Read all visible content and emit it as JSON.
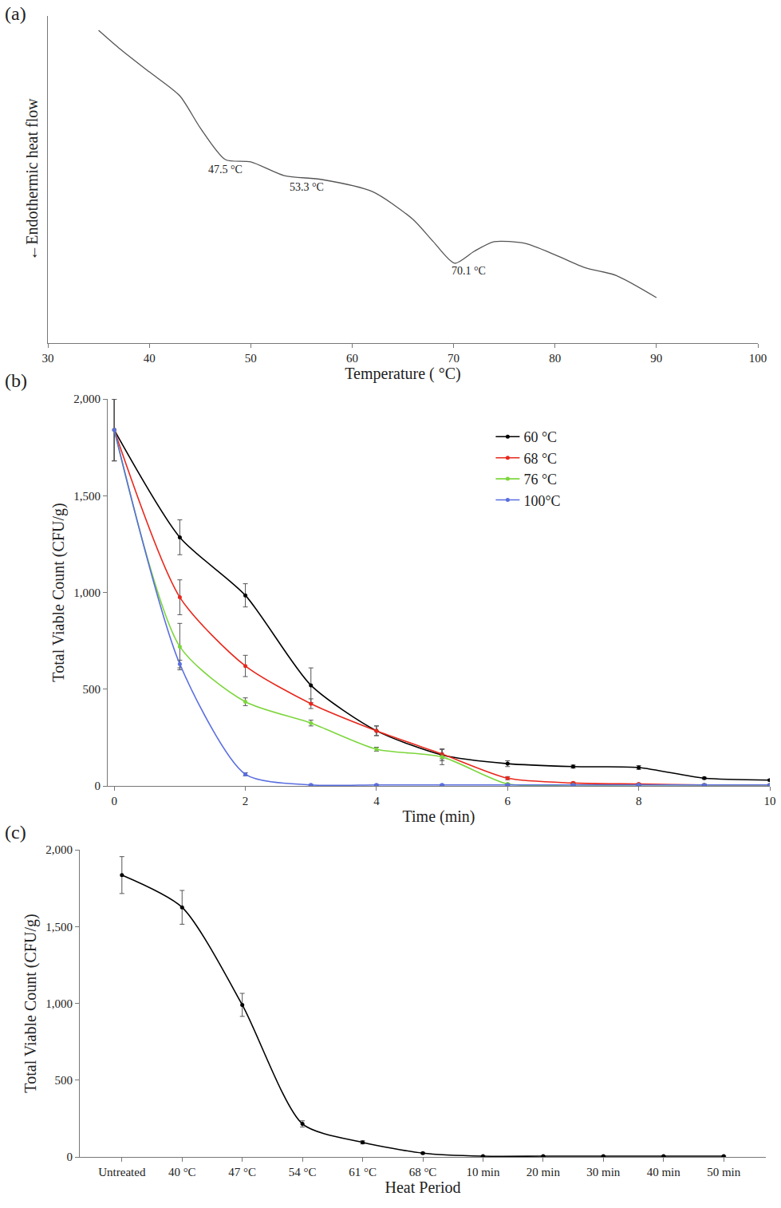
{
  "chart_data": [
    {
      "type": "line",
      "title": "(a)",
      "x_label": "Temperature ( °C)",
      "y_label": "←Endothermic heat flow",
      "x": [
        35,
        37,
        40,
        43,
        45,
        47.5,
        50,
        53.3,
        57,
        62,
        66,
        68,
        70.1,
        72,
        74,
        77,
        80,
        83,
        86,
        90
      ],
      "values": [
        95.6,
        90.2,
        82.9,
        75.6,
        65.9,
        56.1,
        55.4,
        51.2,
        50,
        46.3,
        37.8,
        31,
        24.4,
        28,
        31,
        30.5,
        27,
        23,
        20.7,
        13.9
      ],
      "color": "#555555",
      "xlim": [
        30,
        100
      ],
      "xticks": [
        30,
        40,
        50,
        60,
        70,
        80,
        90,
        100
      ],
      "ylim": [
        0,
        100
      ],
      "yticks": [],
      "tick_labels": "x",
      "grid": false,
      "annotations": [
        {
          "text": "47.5 °C",
          "x": 47.5,
          "y": 53
        },
        {
          "text": "53.3 °C",
          "x": 55.5,
          "y": 47.6
        },
        {
          "text": "70.1 °C",
          "x": 71.5,
          "y": 22
        }
      ]
    },
    {
      "type": "line",
      "title": "(b)",
      "x_label": "Time (min)",
      "y_label": "Total Viable Count (CFU/g)",
      "x": [
        0,
        1,
        2,
        3,
        4,
        5,
        6,
        7,
        8,
        9,
        10
      ],
      "series": [
        {
          "name": "60 °C",
          "color": "#000000",
          "values": [
            1840,
            1285,
            985,
            520,
            285,
            160,
            115,
            100,
            95,
            40,
            30
          ],
          "errors": [
            160,
            90,
            60,
            90,
            25,
            30,
            15,
            8,
            10,
            5,
            5
          ]
        },
        {
          "name": "68 °C",
          "color": "#e8281c",
          "values": [
            1840,
            975,
            620,
            425,
            285,
            165,
            40,
            15,
            10,
            5,
            5
          ],
          "errors": [
            160,
            90,
            55,
            25,
            25,
            25,
            8,
            5,
            3,
            3,
            3
          ]
        },
        {
          "name": "76 °C",
          "color": "#7cd63c",
          "values": [
            1840,
            720,
            435,
            325,
            190,
            150,
            10,
            5,
            5,
            5,
            5
          ],
          "errors": [
            160,
            120,
            20,
            15,
            10,
            40,
            3,
            3,
            3,
            3,
            3
          ]
        },
        {
          "name": "100°C",
          "color": "#5a6ee0",
          "values": [
            1840,
            630,
            60,
            5,
            5,
            5,
            5,
            5,
            5,
            5,
            5
          ],
          "errors": [
            160,
            20,
            8,
            3,
            3,
            3,
            3,
            3,
            3,
            3,
            3
          ]
        }
      ],
      "xlim": [
        -0.1,
        10
      ],
      "xticks": [
        0,
        2,
        4,
        6,
        8,
        10
      ],
      "ylim": [
        0,
        2000
      ],
      "yticks": [
        0,
        500,
        {
          "value": 1000,
          "label": "1,000"
        },
        {
          "value": 1500,
          "label": "1,500"
        },
        {
          "value": 2000,
          "label": "2,000"
        }
      ],
      "legend": "upper right",
      "grid": false,
      "marker": "circle"
    },
    {
      "type": "line",
      "title": "(c)",
      "x_label": "Heat Period",
      "y_label": "Total Viable Count (CFU/g)",
      "categories": [
        "Untreated",
        "40 °C",
        "47 °C",
        "54 °C",
        "61 °C",
        "68 °C",
        "10 min",
        "20 min",
        "30 min",
        "40 min",
        "50 min"
      ],
      "values": [
        1835,
        1625,
        990,
        215,
        95,
        25,
        5,
        5,
        5,
        5,
        5
      ],
      "errors": [
        120,
        110,
        75,
        20,
        10,
        5,
        3,
        3,
        3,
        3,
        3
      ],
      "color": "#000000",
      "ylim": [
        0,
        2000
      ],
      "yticks": [
        0,
        500,
        {
          "value": 1000,
          "label": "1,000"
        },
        {
          "value": 1500,
          "label": "1,500"
        },
        {
          "value": 2000,
          "label": "2,000"
        }
      ],
      "grid": false,
      "marker": "circle"
    }
  ]
}
